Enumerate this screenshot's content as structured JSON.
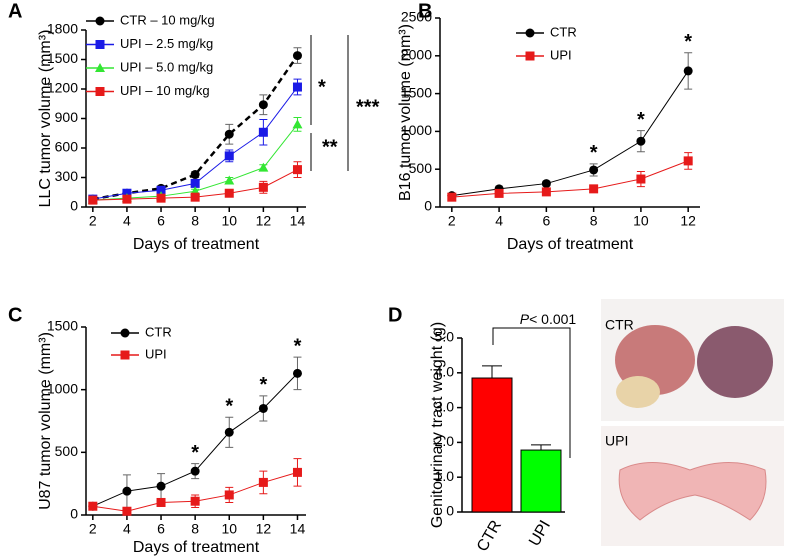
{
  "chart_data": [
    {
      "type": "line",
      "letter": "A",
      "xlabel": "Days of treatment",
      "ylabel": "LLC tumor volume (mm³)",
      "x": [
        2,
        4,
        6,
        8,
        10,
        12,
        14
      ],
      "xlim": [
        1.6,
        14.5
      ],
      "xticks": [
        2,
        4,
        6,
        8,
        10,
        12,
        14
      ],
      "ylim": [
        0,
        1800
      ],
      "yticks": [
        0,
        300,
        600,
        900,
        1200,
        1500,
        1800
      ],
      "legend": "upper left",
      "series": [
        {
          "name": "CTR – 10 mg/kg",
          "color": "#000000",
          "marker": "circle",
          "dash": true,
          "values": [
            80,
            140,
            190,
            330,
            740,
            1040,
            1540
          ],
          "errors": [
            10,
            15,
            20,
            30,
            100,
            100,
            80
          ]
        },
        {
          "name": "UPI – 2.5 mg/kg",
          "color": "#1a1ae6",
          "marker": "square",
          "values": [
            80,
            140,
            170,
            240,
            520,
            760,
            1220
          ],
          "errors": [
            10,
            15,
            20,
            30,
            60,
            130,
            80
          ]
        },
        {
          "name": "UPI – 5.0 mg/kg",
          "color": "#33e633",
          "marker": "triangle",
          "values": [
            70,
            90,
            110,
            160,
            270,
            400,
            840
          ],
          "errors": [
            10,
            10,
            15,
            20,
            30,
            30,
            70
          ]
        },
        {
          "name": "UPI – 10 mg/kg",
          "color": "#e61a1a",
          "marker": "square",
          "values": [
            70,
            80,
            90,
            100,
            140,
            200,
            380
          ],
          "errors": [
            10,
            10,
            15,
            20,
            30,
            60,
            80
          ]
        }
      ],
      "annotations": [
        "*",
        "**",
        "***"
      ]
    },
    {
      "type": "line",
      "letter": "B",
      "xlabel": "Days of treatment",
      "ylabel": "B16 tumor volume (mm³)",
      "x": [
        2,
        4,
        6,
        8,
        10,
        12
      ],
      "xlim": [
        1.5,
        12.5
      ],
      "xticks": [
        2,
        4,
        6,
        8,
        10,
        12
      ],
      "ylim": [
        0,
        2500
      ],
      "yticks": [
        0,
        500,
        1000,
        1500,
        2000,
        2500
      ],
      "legend": "upper center",
      "series": [
        {
          "name": "CTR",
          "color": "#000000",
          "marker": "circle",
          "values": [
            150,
            240,
            310,
            490,
            870,
            1800
          ],
          "errors": [
            20,
            20,
            30,
            80,
            140,
            240
          ]
        },
        {
          "name": "UPI",
          "color": "#e61a1a",
          "marker": "square",
          "values": [
            130,
            180,
            200,
            240,
            370,
            610
          ],
          "errors": [
            20,
            20,
            30,
            40,
            100,
            110
          ]
        }
      ],
      "annotations": [
        {
          "x": 8,
          "text": "*"
        },
        {
          "x": 10,
          "text": "*"
        },
        {
          "x": 12,
          "text": "*"
        }
      ]
    },
    {
      "type": "line",
      "letter": "C",
      "xlabel": "Days of treatment",
      "ylabel": "U87 tumor volume (mm³)",
      "x": [
        2,
        4,
        6,
        8,
        10,
        12,
        14
      ],
      "xlim": [
        1.6,
        14.5
      ],
      "xticks": [
        2,
        4,
        6,
        8,
        10,
        12,
        14
      ],
      "ylim": [
        0,
        1500
      ],
      "yticks": [
        0,
        500,
        1000,
        1500
      ],
      "legend": "upper left",
      "series": [
        {
          "name": "CTR",
          "color": "#000000",
          "marker": "circle",
          "values": [
            70,
            190,
            230,
            350,
            660,
            850,
            1130
          ],
          "errors": [
            10,
            130,
            100,
            60,
            120,
            100,
            130
          ]
        },
        {
          "name": "UPI",
          "color": "#e61a1a",
          "marker": "square",
          "values": [
            70,
            30,
            100,
            110,
            160,
            260,
            340
          ],
          "errors": [
            10,
            20,
            30,
            50,
            60,
            90,
            110
          ]
        }
      ],
      "annotations": [
        {
          "x": 8,
          "text": "*"
        },
        {
          "x": 10,
          "text": "*"
        },
        {
          "x": 12,
          "text": "*"
        },
        {
          "x": 14,
          "text": "*"
        }
      ]
    },
    {
      "type": "bar",
      "letter": "D",
      "ylabel": "Genitourinary tract weight (g)",
      "categories": [
        "CTR",
        "UPI"
      ],
      "values": [
        3.85,
        1.78
      ],
      "errors": [
        0.35,
        0.15
      ],
      "colors": [
        "#ff0000",
        "#00ff00"
      ],
      "ylim": [
        0,
        5
      ],
      "yticks": [
        0,
        {
          "value": 1,
          "label": "1.0"
        },
        {
          "value": 2,
          "label": "2.0"
        },
        {
          "value": 3,
          "label": "3.0"
        },
        {
          "value": 4,
          "label": "4.0"
        },
        {
          "value": 5,
          "label": "5.0"
        }
      ],
      "annotation_p": "P",
      "annotation": "< 0.001",
      "photo_labels": [
        "CTR",
        "UPI"
      ]
    }
  ]
}
